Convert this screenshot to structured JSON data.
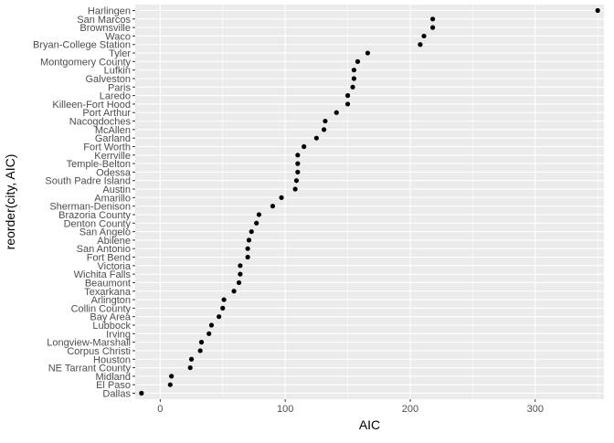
{
  "chart_data": {
    "type": "scatter",
    "title": "",
    "xlabel": "AIC",
    "ylabel": "reorder(city, AIC)",
    "xlim": [
      -20,
      355
    ],
    "xticks": [
      0,
      100,
      200,
      300
    ],
    "xtick_labels": [
      "0",
      "100",
      "200",
      "300"
    ],
    "grid": true,
    "legend": "none",
    "colors": {
      "panel": "#ebebeb",
      "grid": "#ffffff",
      "point": "#000000",
      "text": "#4d4d4d",
      "title": "#000000"
    },
    "categories": [
      "Harlingen",
      "San Marcos",
      "Brownsville",
      "Waco",
      "Bryan-College Station",
      "Tyler",
      "Montgomery County",
      "Lufkin",
      "Galveston",
      "Paris",
      "Laredo",
      "Killeen-Fort Hood",
      "Port Arthur",
      "Nacogdoches",
      "McAllen",
      "Garland",
      "Fort Worth",
      "Kerrville",
      "Temple-Belton",
      "Odessa",
      "South Padre Island",
      "Austin",
      "Amarillo",
      "Sherman-Denison",
      "Brazoria County",
      "Denton County",
      "San Angelo",
      "Abilene",
      "San Antonio",
      "Fort Bend",
      "Victoria",
      "Wichita Falls",
      "Beaumont",
      "Texarkana",
      "Arlington",
      "Collin County",
      "Bay Area",
      "Lubbock",
      "Irving",
      "Longview-Marshall",
      "Corpus Christi",
      "Houston",
      "NE Tarrant County",
      "Midland",
      "El Paso",
      "Dallas"
    ],
    "values": [
      350,
      218,
      218,
      211,
      208,
      166,
      158,
      155,
      155,
      154,
      150,
      150,
      141,
      132,
      131,
      125,
      115,
      110,
      110,
      110,
      109,
      108,
      97,
      90,
      79,
      77,
      73,
      71,
      70,
      70,
      64,
      64,
      63,
      59,
      51,
      50,
      47,
      41,
      39,
      33,
      32,
      25,
      24,
      9,
      8,
      -15
    ]
  }
}
